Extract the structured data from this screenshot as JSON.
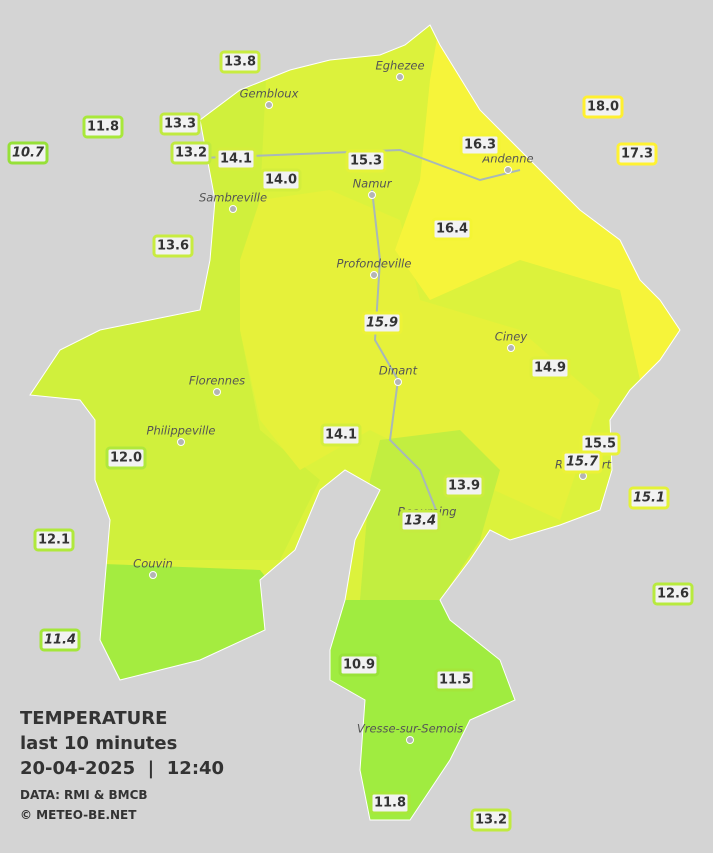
{
  "legend": {
    "title": "TEMPERATURE",
    "subtitle": "last 10 minutes",
    "datetime": "20-04-2025  |  12:40",
    "source": "DATA: RMI & BMCB",
    "copyright": "© METEO-BE.NET"
  },
  "cities": [
    "Eghezee",
    "Gembloux",
    "Andenne",
    "Namur",
    "Sambreville",
    "Profondeville",
    "Ciney",
    "Dinant",
    "Florennes",
    "Philippeville",
    "Rochefort",
    "Beauraing",
    "Couvin",
    "Vresse-sur-Semois"
  ],
  "stations": [
    {
      "label": "13.8",
      "italic": false,
      "color": "#c8ec40"
    },
    {
      "label": "11.8",
      "italic": false,
      "color": "#a8e83a"
    },
    {
      "label": "13.3",
      "italic": false,
      "color": "#c0ea40"
    },
    {
      "label": "10.7",
      "italic": true,
      "color": "#96e038"
    },
    {
      "label": "13.2",
      "italic": false,
      "color": "#c0ea40"
    },
    {
      "label": "14.1",
      "italic": false,
      "color": "#d4ee3c"
    },
    {
      "label": "14.0",
      "italic": false,
      "color": "#d4ee3c"
    },
    {
      "label": "15.3",
      "italic": false,
      "color": "#e4f238"
    },
    {
      "label": "16.3",
      "italic": false,
      "color": "#f4f434"
    },
    {
      "label": "18.0",
      "italic": false,
      "color": "#fff030"
    },
    {
      "label": "17.3",
      "italic": false,
      "color": "#fff232"
    },
    {
      "label": "16.4",
      "italic": false,
      "color": "#f4f434"
    },
    {
      "label": "13.6",
      "italic": false,
      "color": "#c8ec40"
    },
    {
      "label": "15.9",
      "italic": true,
      "color": "#ecf236"
    },
    {
      "label": "14.9",
      "italic": false,
      "color": "#e0f03a"
    },
    {
      "label": "14.1",
      "italic": false,
      "color": "#d4ee3c"
    },
    {
      "label": "15.5",
      "italic": false,
      "color": "#e8f238"
    },
    {
      "label": "15.7",
      "italic": true,
      "color": "#ecf236"
    },
    {
      "label": "12.0",
      "italic": false,
      "color": "#b0e83c"
    },
    {
      "label": "13.9",
      "italic": false,
      "color": "#cced3e"
    },
    {
      "label": "15.1",
      "italic": true,
      "color": "#e4f238"
    },
    {
      "label": "13.4",
      "italic": true,
      "color": "#c4eb40"
    },
    {
      "label": "12.1",
      "italic": false,
      "color": "#b0e83c"
    },
    {
      "label": "12.6",
      "italic": false,
      "color": "#b8ea3e"
    },
    {
      "label": "11.4",
      "italic": true,
      "color": "#a4e63a"
    },
    {
      "label": "10.9",
      "italic": false,
      "color": "#98e238"
    },
    {
      "label": "11.5",
      "italic": false,
      "color": "#a4e63a"
    },
    {
      "label": "11.8",
      "italic": false,
      "color": "#a8e83a"
    },
    {
      "label": "13.2",
      "italic": false,
      "color": "#c0ea40"
    }
  ]
}
